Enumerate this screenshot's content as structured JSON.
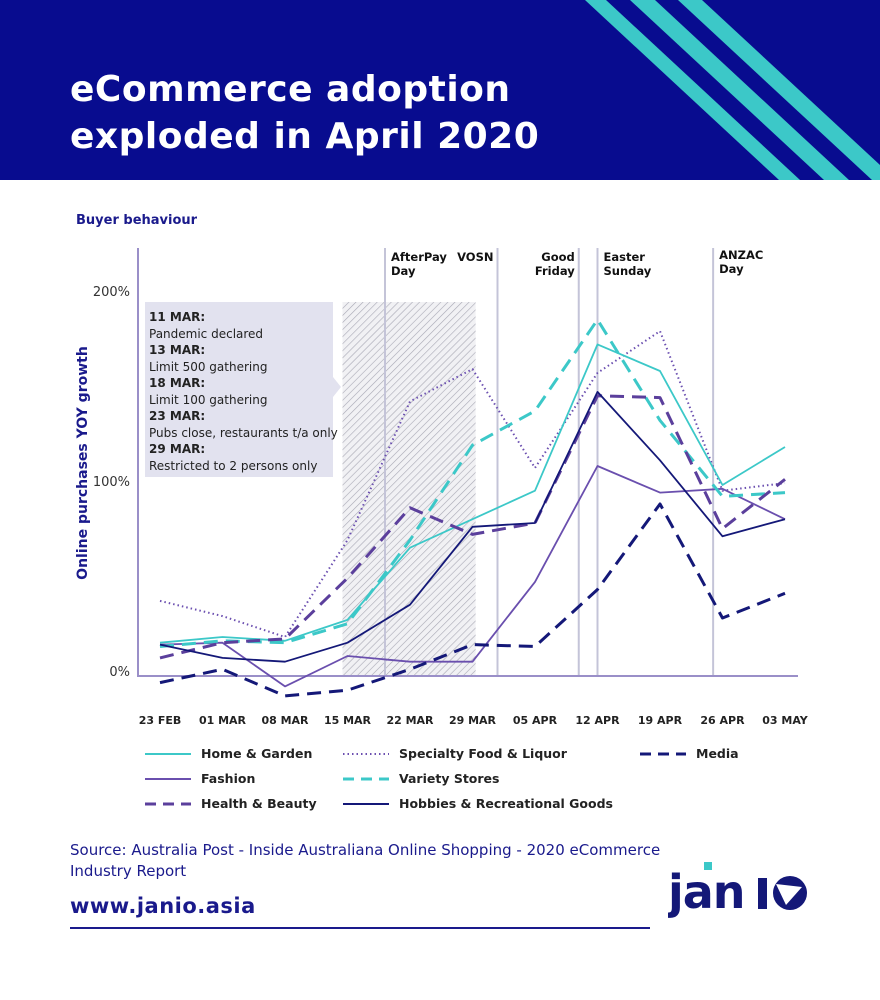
{
  "header": {
    "title_line1": "eCommerce adoption",
    "title_line2": "exploded in April 2020"
  },
  "colors": {
    "navy": "#080c8f",
    "teal": "#3cc8c8",
    "purple": "#5b3f9c",
    "violet": "#6b4fb0"
  },
  "chart_data": {
    "type": "line",
    "title": "Buyer behaviour",
    "ylabel": "Online purchases YOY growth",
    "xlabel": "",
    "ylim": [
      -15,
      225
    ],
    "yticks": [
      "0%",
      "100%",
      "200%"
    ],
    "ytick_values": [
      0,
      100,
      200
    ],
    "categories": [
      "23 FEB",
      "01 MAR",
      "08 MAR",
      "15 MAR",
      "22 MAR",
      "29 MAR",
      "05 APR",
      "12 APR",
      "19 APR",
      "26 APR",
      "03 MAY"
    ],
    "series": [
      {
        "name": "Home & Garden",
        "color": "#3cc8c8",
        "style": "solid",
        "values": [
          17,
          20,
          18,
          29,
          67,
          82,
          97,
          174,
          160,
          100,
          120
        ]
      },
      {
        "name": "Specialty Food & Liquor",
        "color": "#6b4fb0",
        "style": "dotted",
        "values": [
          39,
          31,
          20,
          71,
          144,
          161,
          109,
          159,
          181,
          97,
          101
        ]
      },
      {
        "name": "Media",
        "color": "#141878",
        "style": "dashed",
        "values": [
          -4,
          3,
          -11,
          -8,
          3,
          16,
          15,
          45,
          90,
          30,
          43
        ]
      },
      {
        "name": "Fashion",
        "color": "#6a4fae",
        "style": "solid",
        "values": [
          16,
          17,
          -6,
          10,
          7,
          7,
          49,
          110,
          96,
          98,
          82
        ]
      },
      {
        "name": "Variety Stores",
        "color": "#3cc8c8",
        "style": "dashed",
        "values": [
          15,
          18,
          17,
          27,
          71,
          121,
          139,
          187,
          134,
          94,
          96
        ]
      },
      {
        "name": "Health &  Beauty",
        "color": "#5b3f9c",
        "style": "dashed",
        "values": [
          9,
          17,
          19,
          51,
          88,
          74,
          80,
          147,
          146,
          77,
          103
        ]
      },
      {
        "name": "Hobbies & Recreational Goods",
        "color": "#141878",
        "style": "solid",
        "values": [
          16,
          9,
          7,
          17,
          37,
          78,
          80,
          149,
          113,
          73,
          82
        ]
      }
    ],
    "events": [
      {
        "label_line1": "AfterPay",
        "label_line2": "Day",
        "x_index": 3.6
      },
      {
        "label_line1": "VOSN",
        "label_line2": "",
        "x_index": 5.4
      },
      {
        "label_line1": "Good",
        "label_line2": "Friday",
        "x_index": 6.7
      },
      {
        "label_line1": "Easter",
        "label_line2": "Sunday",
        "x_index": 7.0
      },
      {
        "label_line1": "ANZAC",
        "label_line2": "Day",
        "x_index": 8.85
      }
    ],
    "shaded_range_index": [
      3,
      5.05
    ],
    "annotations": [
      {
        "date": "11 MAR:",
        "text": "Pandemic declared"
      },
      {
        "date": "13 MAR:",
        "text": "Limit 500 gathering"
      },
      {
        "date": "18 MAR:",
        "text": "Limit 100 gathering"
      },
      {
        "date": "23 MAR:",
        "text": "Pubs close, restaurants t/a only"
      },
      {
        "date": "29 MAR:",
        "text": "Restricted to 2 persons only"
      }
    ],
    "legend_position": "bottom",
    "grid": false
  },
  "footer": {
    "source": "Source: Australia Post - Inside Australiana Online Shopping - 2020 eCommerce Industry Report",
    "url": "www.janio.asia",
    "logo_text": "janio"
  }
}
